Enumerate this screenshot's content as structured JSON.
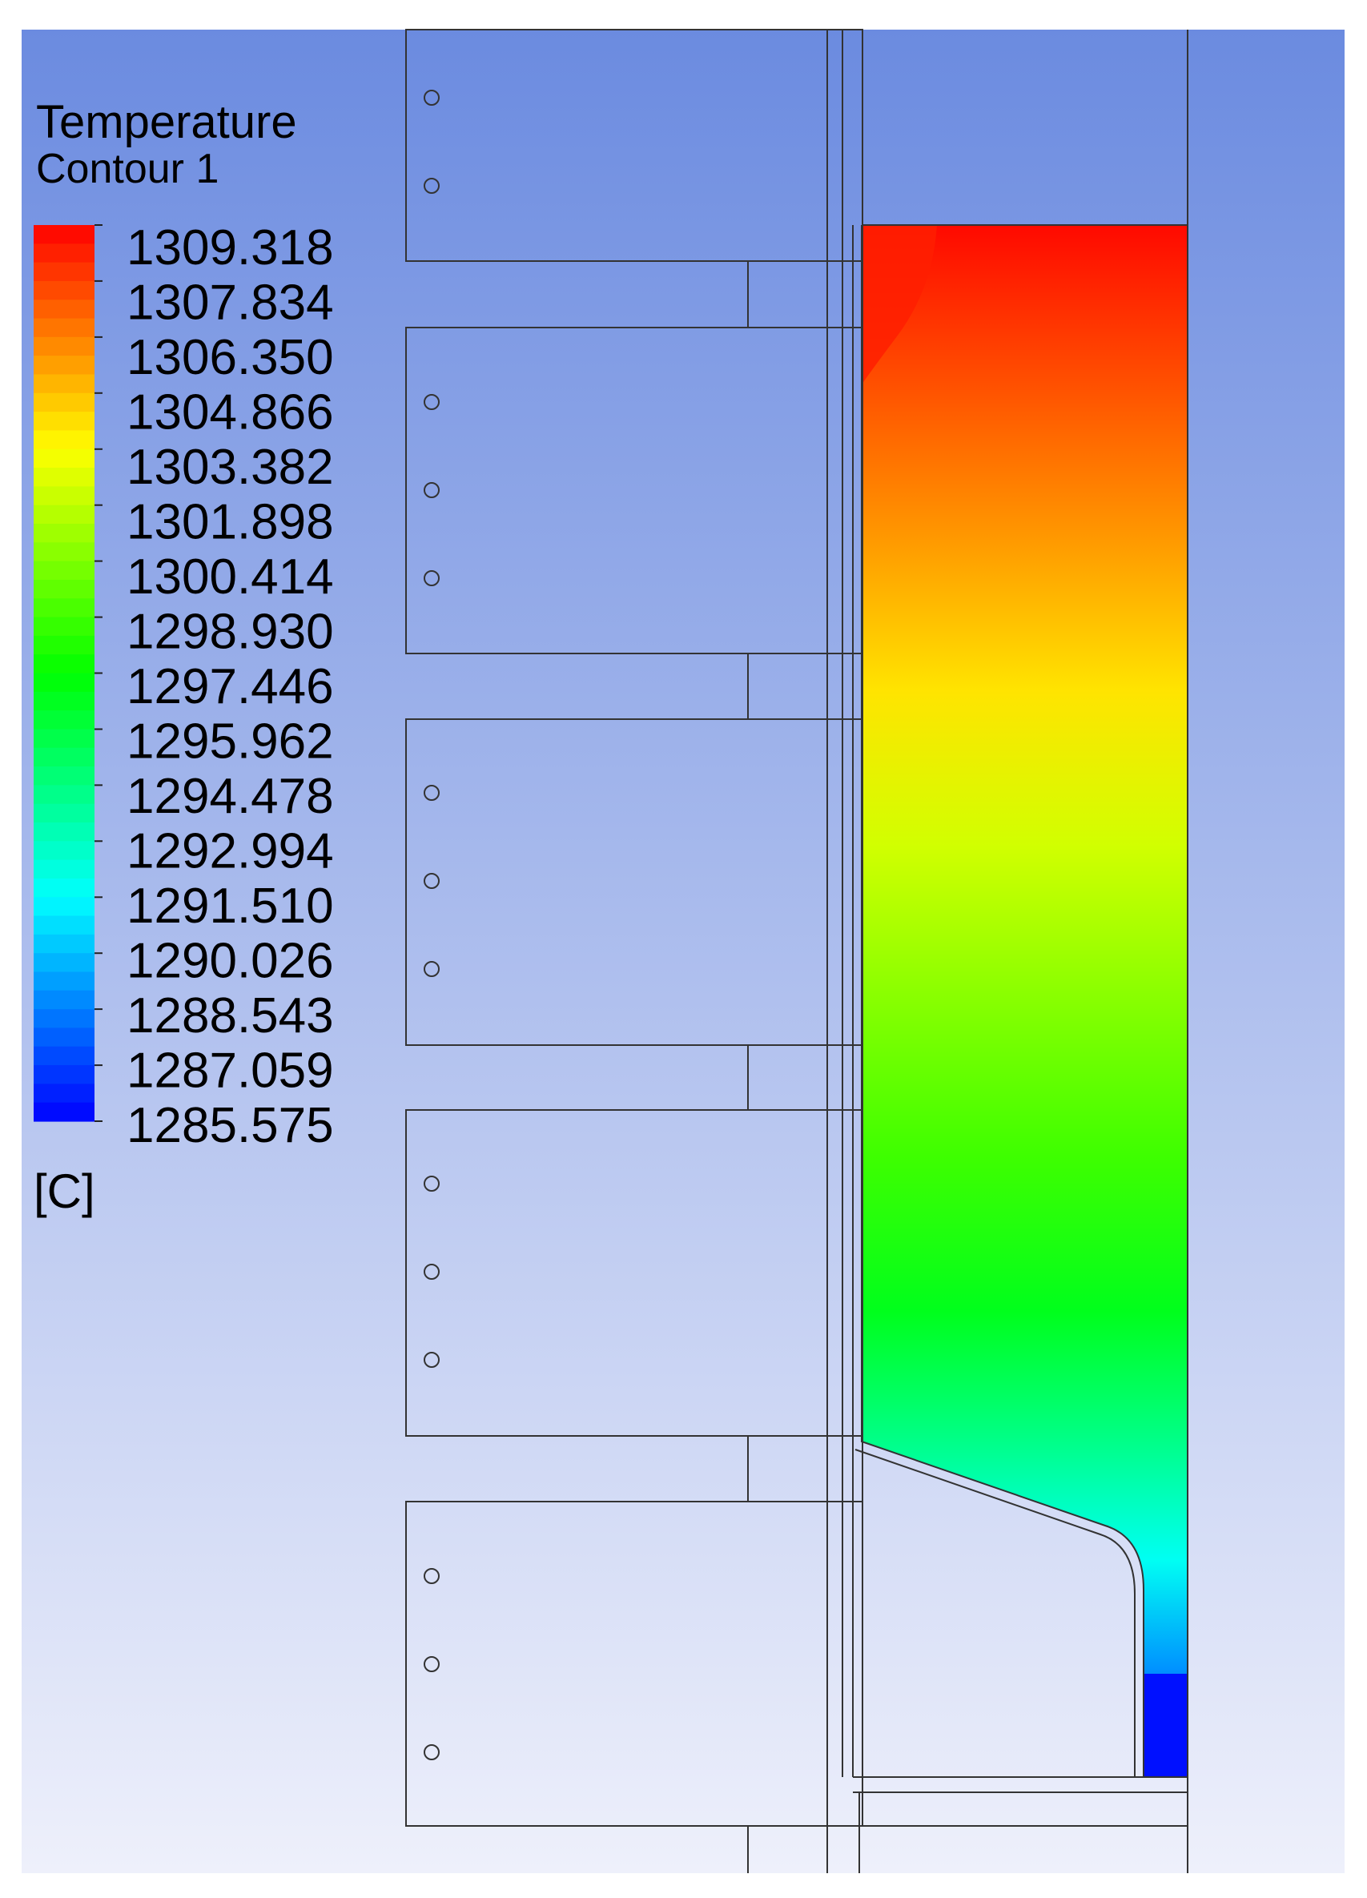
{
  "legend": {
    "title": "Temperature",
    "subtitle": "Contour 1",
    "unit": "[C]"
  },
  "chart_data": {
    "type": "heatmap",
    "quantity": "Temperature",
    "unit": "[C]",
    "range": [
      1285.575,
      1309.318
    ],
    "colormap": [
      "#0000ff",
      "#00ffff",
      "#00ff00",
      "#ffff00",
      "#ff0000"
    ],
    "legend_ticks": [
      "1309.318",
      "1307.834",
      "1306.350",
      "1304.866",
      "1303.382",
      "1301.898",
      "1300.414",
      "1298.930",
      "1297.446",
      "1295.962",
      "1294.478",
      "1292.994",
      "1291.510",
      "1290.026",
      "1288.543",
      "1287.059",
      "1285.575"
    ],
    "field_profile": [
      {
        "depth": 0.0,
        "value": 1309.1
      },
      {
        "depth": 0.1,
        "value": 1307.5
      },
      {
        "depth": 0.2,
        "value": 1305.8
      },
      {
        "depth": 0.3,
        "value": 1304.0
      },
      {
        "depth": 0.4,
        "value": 1302.3
      },
      {
        "depth": 0.5,
        "value": 1300.6
      },
      {
        "depth": 0.6,
        "value": 1298.9
      },
      {
        "depth": 0.7,
        "value": 1296.8
      },
      {
        "depth": 0.78,
        "value": 1294.4
      },
      {
        "depth": 0.86,
        "value": 1291.8
      },
      {
        "depth": 0.93,
        "value": 1289.0
      },
      {
        "depth": 1.0,
        "value": 1286.0
      }
    ],
    "background_gradient": [
      "#6b8be0",
      "#eef0fb"
    ]
  }
}
